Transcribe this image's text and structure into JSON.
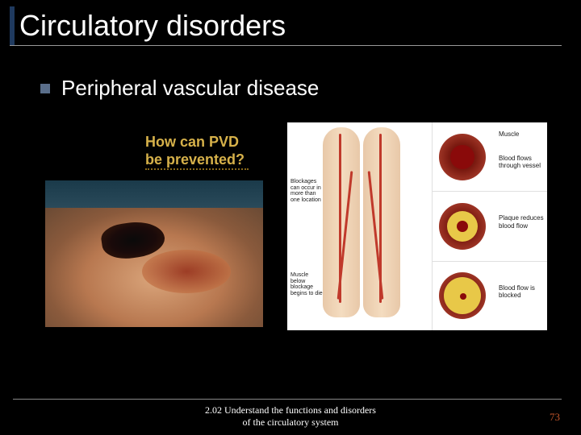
{
  "title": "Circulatory disorders",
  "bullet": {
    "text": "Peripheral vascular disease"
  },
  "callout": {
    "line1": "How can PVD",
    "line2": "be prevented?"
  },
  "diagram": {
    "legs": {
      "label_top": "Blockages can occur in more than one location",
      "label_bottom": "Muscle below blockage begins to die"
    },
    "vessels": [
      {
        "label_a": "Muscle",
        "label_b": "Blood flows through vessel"
      },
      {
        "label_a": "Plaque reduces blood flow"
      },
      {
        "label_a": "Blood flow is blocked"
      }
    ]
  },
  "footer": {
    "line1": "2.02 Understand the functions and disorders",
    "line2": "of the circulatory system"
  },
  "page_number": "73",
  "colors": {
    "background": "#000000",
    "title_accent": "#1f3a5f",
    "bullet_square": "#5a6e8a",
    "callout_text": "#d6b14a",
    "page_number": "#c0552a"
  }
}
